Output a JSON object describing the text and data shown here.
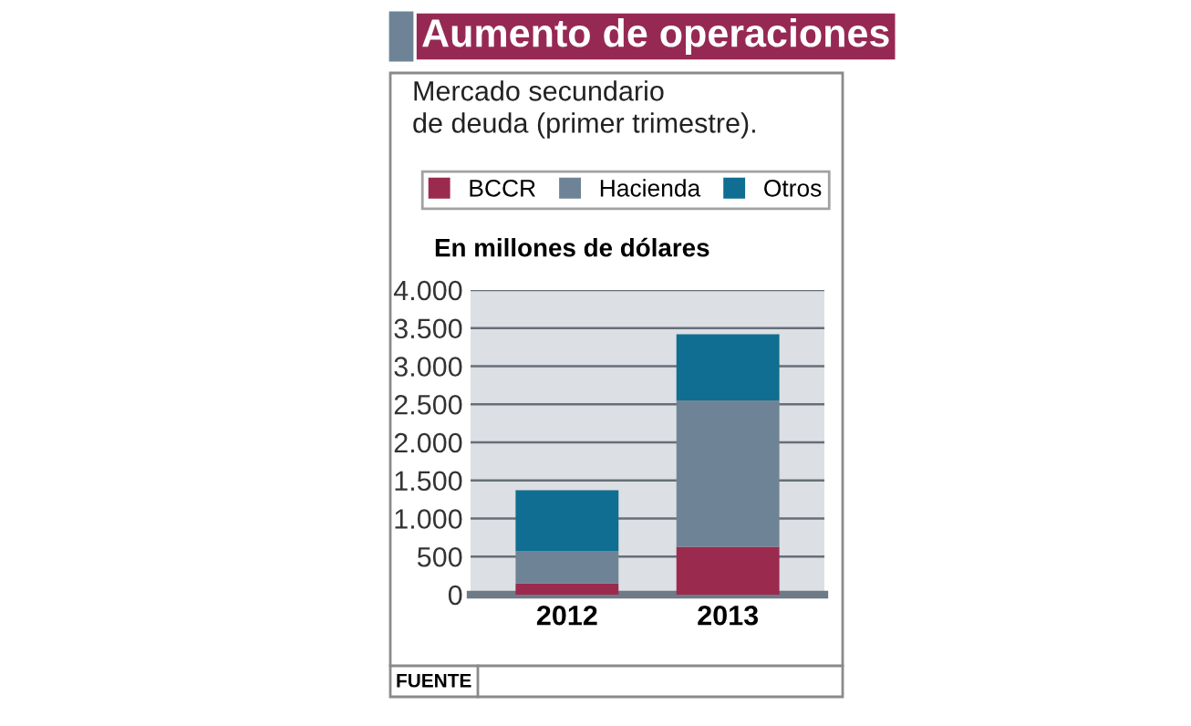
{
  "chart_data": {
    "type": "bar",
    "stacked": true,
    "title": "Aumento de operaciones",
    "subtitle": "Mercado secundario\nde deuda (primer trimestre).",
    "ylabel": "En millones de dólares",
    "categories": [
      "2012",
      "2013"
    ],
    "series": [
      {
        "name": "BCCR",
        "color": "#9b2a4f",
        "values": [
          150,
          630
        ]
      },
      {
        "name": "Hacienda",
        "color": "#6e8496",
        "values": [
          420,
          1920
        ]
      },
      {
        "name": "Otros",
        "color": "#0f6e91",
        "values": [
          800,
          870
        ]
      }
    ],
    "ylim": [
      0,
      4000
    ],
    "yticks": [
      0,
      500,
      {
        "value": 1000,
        "label": "1.000"
      },
      {
        "value": 1500,
        "label": "1.500"
      },
      {
        "value": 2000,
        "label": "2.000"
      },
      {
        "value": 2500,
        "label": "2.500"
      },
      {
        "value": 3000,
        "label": "3.000"
      },
      {
        "value": 3500,
        "label": "3.500"
      },
      {
        "value": 4000,
        "label": "4.000"
      }
    ],
    "grid": "y",
    "legend": "top",
    "annotations": [
      "FUENTE"
    ]
  }
}
